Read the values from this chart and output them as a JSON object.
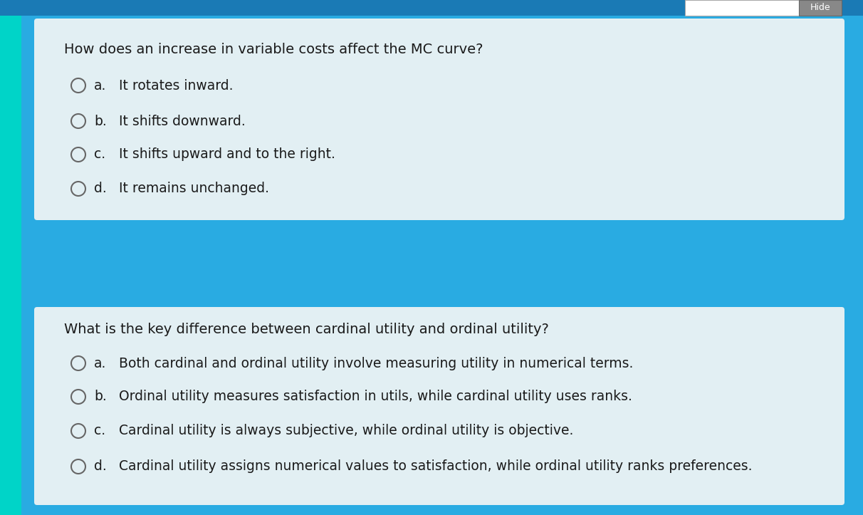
{
  "background_color": "#29ABE2",
  "card_color": "#E2EFF3",
  "left_accent_color": "#00D4C8",
  "text_color": "#1a1a1a",
  "circle_edge_color": "#666666",
  "question1": "How does an increase in variable costs affect the MC curve?",
  "question2": "What is the key difference between cardinal utility and ordinal utility?",
  "q1_options": [
    [
      "a.",
      "It rotates inward."
    ],
    [
      "b.",
      "It shifts downward."
    ],
    [
      "c.",
      "It shifts upward and to the right."
    ],
    [
      "d.",
      "It remains unchanged."
    ]
  ],
  "q2_options": [
    [
      "a.",
      "Both cardinal and ordinal utility involve measuring utility in numerical terms."
    ],
    [
      "b.",
      "Ordinal utility measures satisfaction in utils, while cardinal utility uses ranks."
    ],
    [
      "c.",
      "Cardinal utility is always subjective, while ordinal utility is objective."
    ],
    [
      "d.",
      "Cardinal utility assigns numerical values to satisfaction, while ordinal utility ranks preferences."
    ]
  ],
  "font_size_question": 14.0,
  "font_size_option": 13.5,
  "fig_width": 12.12,
  "fig_height": 7.23,
  "dpi": 100
}
